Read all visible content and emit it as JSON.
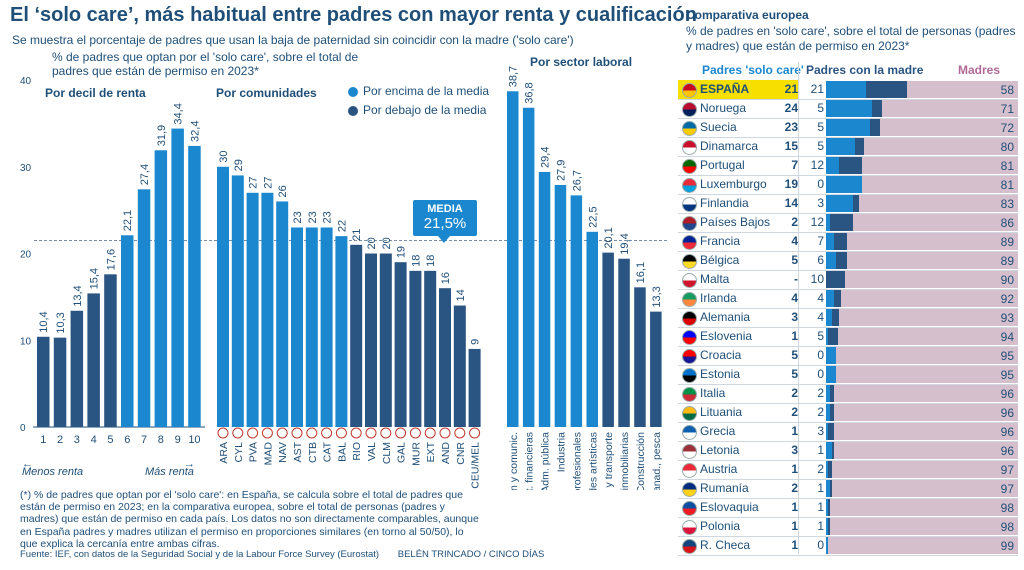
{
  "title": "El ‘solo care’, más habitual entre padres con mayor renta y cualificación",
  "subtitle": "Se muestra el porcentaje de padres que usan la baja de paternidad sin coincidir con la madre ('solo care')",
  "ylabel": "% de padres que optan por el 'solo care', sobre el total de padres que están de permiso en 2023*",
  "yticks": [
    "40",
    "30",
    "20",
    "10",
    "0"
  ],
  "panels": {
    "decil": "Por decil de renta",
    "comunidades": "Por comunidades",
    "sector": "Por sector laboral"
  },
  "legend": {
    "above": "Por encima de la media",
    "below": "Por debajo de la media"
  },
  "media": {
    "label": "MEDIA",
    "value": "21,5%"
  },
  "axis_notes": {
    "left": "Menos renta",
    "right": "Más renta"
  },
  "footnote": "(*) % de padres que optan por el 'solo care': en España, se calcula sobre el total de padres que están de permiso en 2023; en la comparativa europea, sobre el total de personas (padres y madres) que están de permiso en cada país. Los datos no son directamente comparables, aunque en España padres y madres utilizan el permiso en proporciones similares (en torno al 50/50), lo que explica la cercanía entre ambas cifras.",
  "source": "Fuente: IEF, con datos de la Seguridad Social y de la Labour Force Survey (Eurostat)",
  "credit": "BELÉN TRINCADO / CINCO DÍAS",
  "colors": {
    "above": "#1b87cf",
    "below": "#2a5482",
    "madres": "#d6bfcd",
    "highlight": "#f7e000",
    "text": "#1f4f78"
  },
  "chart_data": [
    {
      "type": "bar",
      "title": "Por decil de renta",
      "categories": [
        "1",
        "2",
        "3",
        "4",
        "5",
        "6",
        "7",
        "8",
        "9",
        "10"
      ],
      "values": [
        10.4,
        10.3,
        13.4,
        15.4,
        17.6,
        22.1,
        27.4,
        31.9,
        34.4,
        32.4
      ],
      "labels": [
        "10,4",
        "10,3",
        "13,4",
        "15,4",
        "17,6",
        "22,1",
        "27,4",
        "31,9",
        "34,4",
        "32,4"
      ],
      "ylim": [
        0,
        40
      ],
      "reference_line": 21.5
    },
    {
      "type": "bar",
      "title": "Por comunidades",
      "categories": [
        "ARA",
        "CYL",
        "PVA",
        "MAD",
        "NAV",
        "AST",
        "CTB",
        "CAT",
        "BAL",
        "RIO",
        "VAL",
        "CLM",
        "GAL",
        "MUR",
        "EXT",
        "AND",
        "CNR",
        "CEU/MEL"
      ],
      "values": [
        30,
        29,
        27,
        27,
        26,
        23,
        23,
        23,
        22,
        21,
        20,
        20,
        19,
        18,
        18,
        16,
        14,
        9
      ],
      "labels": [
        "30",
        "29",
        "27",
        "27",
        "26",
        "23",
        "23",
        "23",
        "22",
        "21",
        "20",
        "20",
        "19",
        "18",
        "18",
        "16",
        "14",
        "9"
      ],
      "ylim": [
        0,
        40
      ],
      "reference_line": 21.5
    },
    {
      "type": "bar",
      "title": "Por sector laboral",
      "categories": [
        "Información y comunic.",
        "Act. financieras",
        "Adm. pública",
        "Industria",
        "Act. profesionales",
        "Actividades artísticas",
        "Comercio y transporte",
        "Act. inmobiliarias",
        "Construcción",
        "Agricult., ganad., pesca"
      ],
      "values": [
        38.7,
        36.8,
        29.4,
        27.9,
        26.7,
        22.5,
        20.1,
        19.4,
        16.1,
        13.3
      ],
      "labels": [
        "38,7",
        "36,8",
        "29,4",
        "27,9",
        "26,7",
        "22,5",
        "20,1",
        "19,4",
        "16,1",
        "13,3"
      ],
      "ylim": [
        0,
        40
      ],
      "reference_line": 21.5
    },
    {
      "type": "table",
      "title": "Comparativa europea",
      "subtitle": "% de padres en 'solo care', sobre el total de personas (padres y madres) que están de permiso en 2023*",
      "columns": [
        "Padres 'solo care'",
        "Padres con la madre",
        "Madres"
      ],
      "rows": [
        {
          "country": "ESPAÑA",
          "flag": "spain-flag-icon",
          "solo": "21",
          "con": "21",
          "madres": "58",
          "v": [
            21,
            21,
            58
          ]
        },
        {
          "country": "Noruega",
          "flag": "norway-flag-icon",
          "solo": "24",
          "con": "5",
          "madres": "71",
          "v": [
            24,
            5,
            71
          ]
        },
        {
          "country": "Suecia",
          "flag": "sweden-flag-icon",
          "solo": "23",
          "con": "5",
          "madres": "72",
          "v": [
            23,
            5,
            72
          ]
        },
        {
          "country": "Dinamarca",
          "flag": "denmark-flag-icon",
          "solo": "15",
          "con": "5",
          "madres": "80",
          "v": [
            15,
            5,
            80
          ]
        },
        {
          "country": "Portugal",
          "flag": "portugal-flag-icon",
          "solo": "7",
          "con": "12",
          "madres": "81",
          "v": [
            7,
            12,
            81
          ]
        },
        {
          "country": "Luxemburgo",
          "flag": "luxembourg-flag-icon",
          "solo": "19",
          "con": "0",
          "madres": "81",
          "v": [
            19,
            0,
            81
          ]
        },
        {
          "country": "Finlandia",
          "flag": "finland-flag-icon",
          "solo": "14",
          "con": "3",
          "madres": "83",
          "v": [
            14,
            3,
            83
          ]
        },
        {
          "country": "Países Bajos",
          "flag": "netherlands-flag-icon",
          "solo": "2",
          "con": "12",
          "madres": "86",
          "v": [
            2,
            12,
            86
          ]
        },
        {
          "country": "Francia",
          "flag": "france-flag-icon",
          "solo": "4",
          "con": "7",
          "madres": "89",
          "v": [
            4,
            7,
            89
          ]
        },
        {
          "country": "Bélgica",
          "flag": "belgium-flag-icon",
          "solo": "5",
          "con": "6",
          "madres": "89",
          "v": [
            5,
            6,
            89
          ]
        },
        {
          "country": "Malta",
          "flag": "malta-flag-icon",
          "solo": "-",
          "con": "10",
          "madres": "90",
          "v": [
            0,
            10,
            90
          ]
        },
        {
          "country": "Irlanda",
          "flag": "ireland-flag-icon",
          "solo": "4",
          "con": "4",
          "madres": "92",
          "v": [
            4,
            4,
            92
          ]
        },
        {
          "country": "Alemania",
          "flag": "germany-flag-icon",
          "solo": "3",
          "con": "4",
          "madres": "93",
          "v": [
            3,
            4,
            93
          ]
        },
        {
          "country": "Eslovenia",
          "flag": "slovenia-flag-icon",
          "solo": "1",
          "con": "5",
          "madres": "94",
          "v": [
            1,
            5,
            94
          ]
        },
        {
          "country": "Croacia",
          "flag": "croatia-flag-icon",
          "solo": "5",
          "con": "0",
          "madres": "95",
          "v": [
            5,
            0,
            95
          ]
        },
        {
          "country": "Estonia",
          "flag": "estonia-flag-icon",
          "solo": "5",
          "con": "0",
          "madres": "95",
          "v": [
            5,
            0,
            95
          ]
        },
        {
          "country": "Italia",
          "flag": "italy-flag-icon",
          "solo": "2",
          "con": "2",
          "madres": "96",
          "v": [
            2,
            2,
            96
          ]
        },
        {
          "country": "Lituania",
          "flag": "lithuania-flag-icon",
          "solo": "2",
          "con": "2",
          "madres": "96",
          "v": [
            2,
            2,
            96
          ]
        },
        {
          "country": "Grecia",
          "flag": "greece-flag-icon",
          "solo": "1",
          "con": "3",
          "madres": "96",
          "v": [
            1,
            3,
            96
          ]
        },
        {
          "country": "Letonia",
          "flag": "latvia-flag-icon",
          "solo": "3",
          "con": "1",
          "madres": "96",
          "v": [
            3,
            1,
            96
          ]
        },
        {
          "country": "Austria",
          "flag": "austria-flag-icon",
          "solo": "1",
          "con": "2",
          "madres": "97",
          "v": [
            1,
            2,
            97
          ]
        },
        {
          "country": "Rumanía",
          "flag": "romania-flag-icon",
          "solo": "2",
          "con": "1",
          "madres": "97",
          "v": [
            2,
            1,
            97
          ]
        },
        {
          "country": "Eslovaquia",
          "flag": "slovakia-flag-icon",
          "solo": "1",
          "con": "1",
          "madres": "98",
          "v": [
            1,
            1,
            98
          ]
        },
        {
          "country": "Polonia",
          "flag": "poland-flag-icon",
          "solo": "1",
          "con": "1",
          "madres": "98",
          "v": [
            1,
            1,
            98
          ]
        },
        {
          "country": "R. Checa",
          "flag": "czech-flag-icon",
          "solo": "1",
          "con": "0",
          "madres": "99",
          "v": [
            1,
            0,
            99
          ]
        }
      ]
    }
  ]
}
